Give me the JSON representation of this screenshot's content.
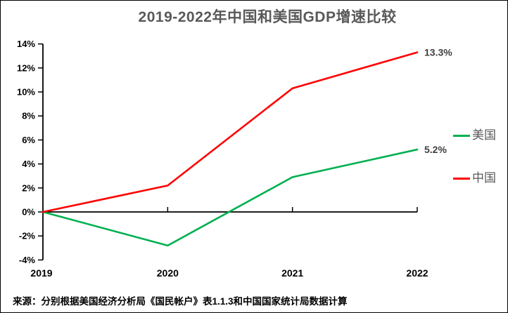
{
  "chart_data": {
    "type": "line",
    "title": "2019-2022年中国和美国GDP增速比较",
    "x_labels": [
      "2019",
      "2020",
      "2021",
      "2022"
    ],
    "ylim": [
      -4,
      14
    ],
    "ytick_step": 2,
    "ytick_labels": [
      "14%",
      "12%",
      "10%",
      "8%",
      "6%",
      "4%",
      "2%",
      "0%",
      "-2%",
      "-4%"
    ],
    "grid": false,
    "legend_position": "right",
    "axis_color": "#000000",
    "series": [
      {
        "name": "美国",
        "color": "#00B050",
        "values": [
          0,
          -2.8,
          2.9,
          5.2
        ],
        "end_label": "5.2%"
      },
      {
        "name": "中国",
        "color": "#FF0000",
        "values": [
          0,
          2.2,
          10.3,
          13.3
        ],
        "end_label": "13.3%"
      }
    ],
    "source": "来源：分别根据美国经济分析局《国民帐户》表1.1.3和中国国家统计局数据计算"
  }
}
